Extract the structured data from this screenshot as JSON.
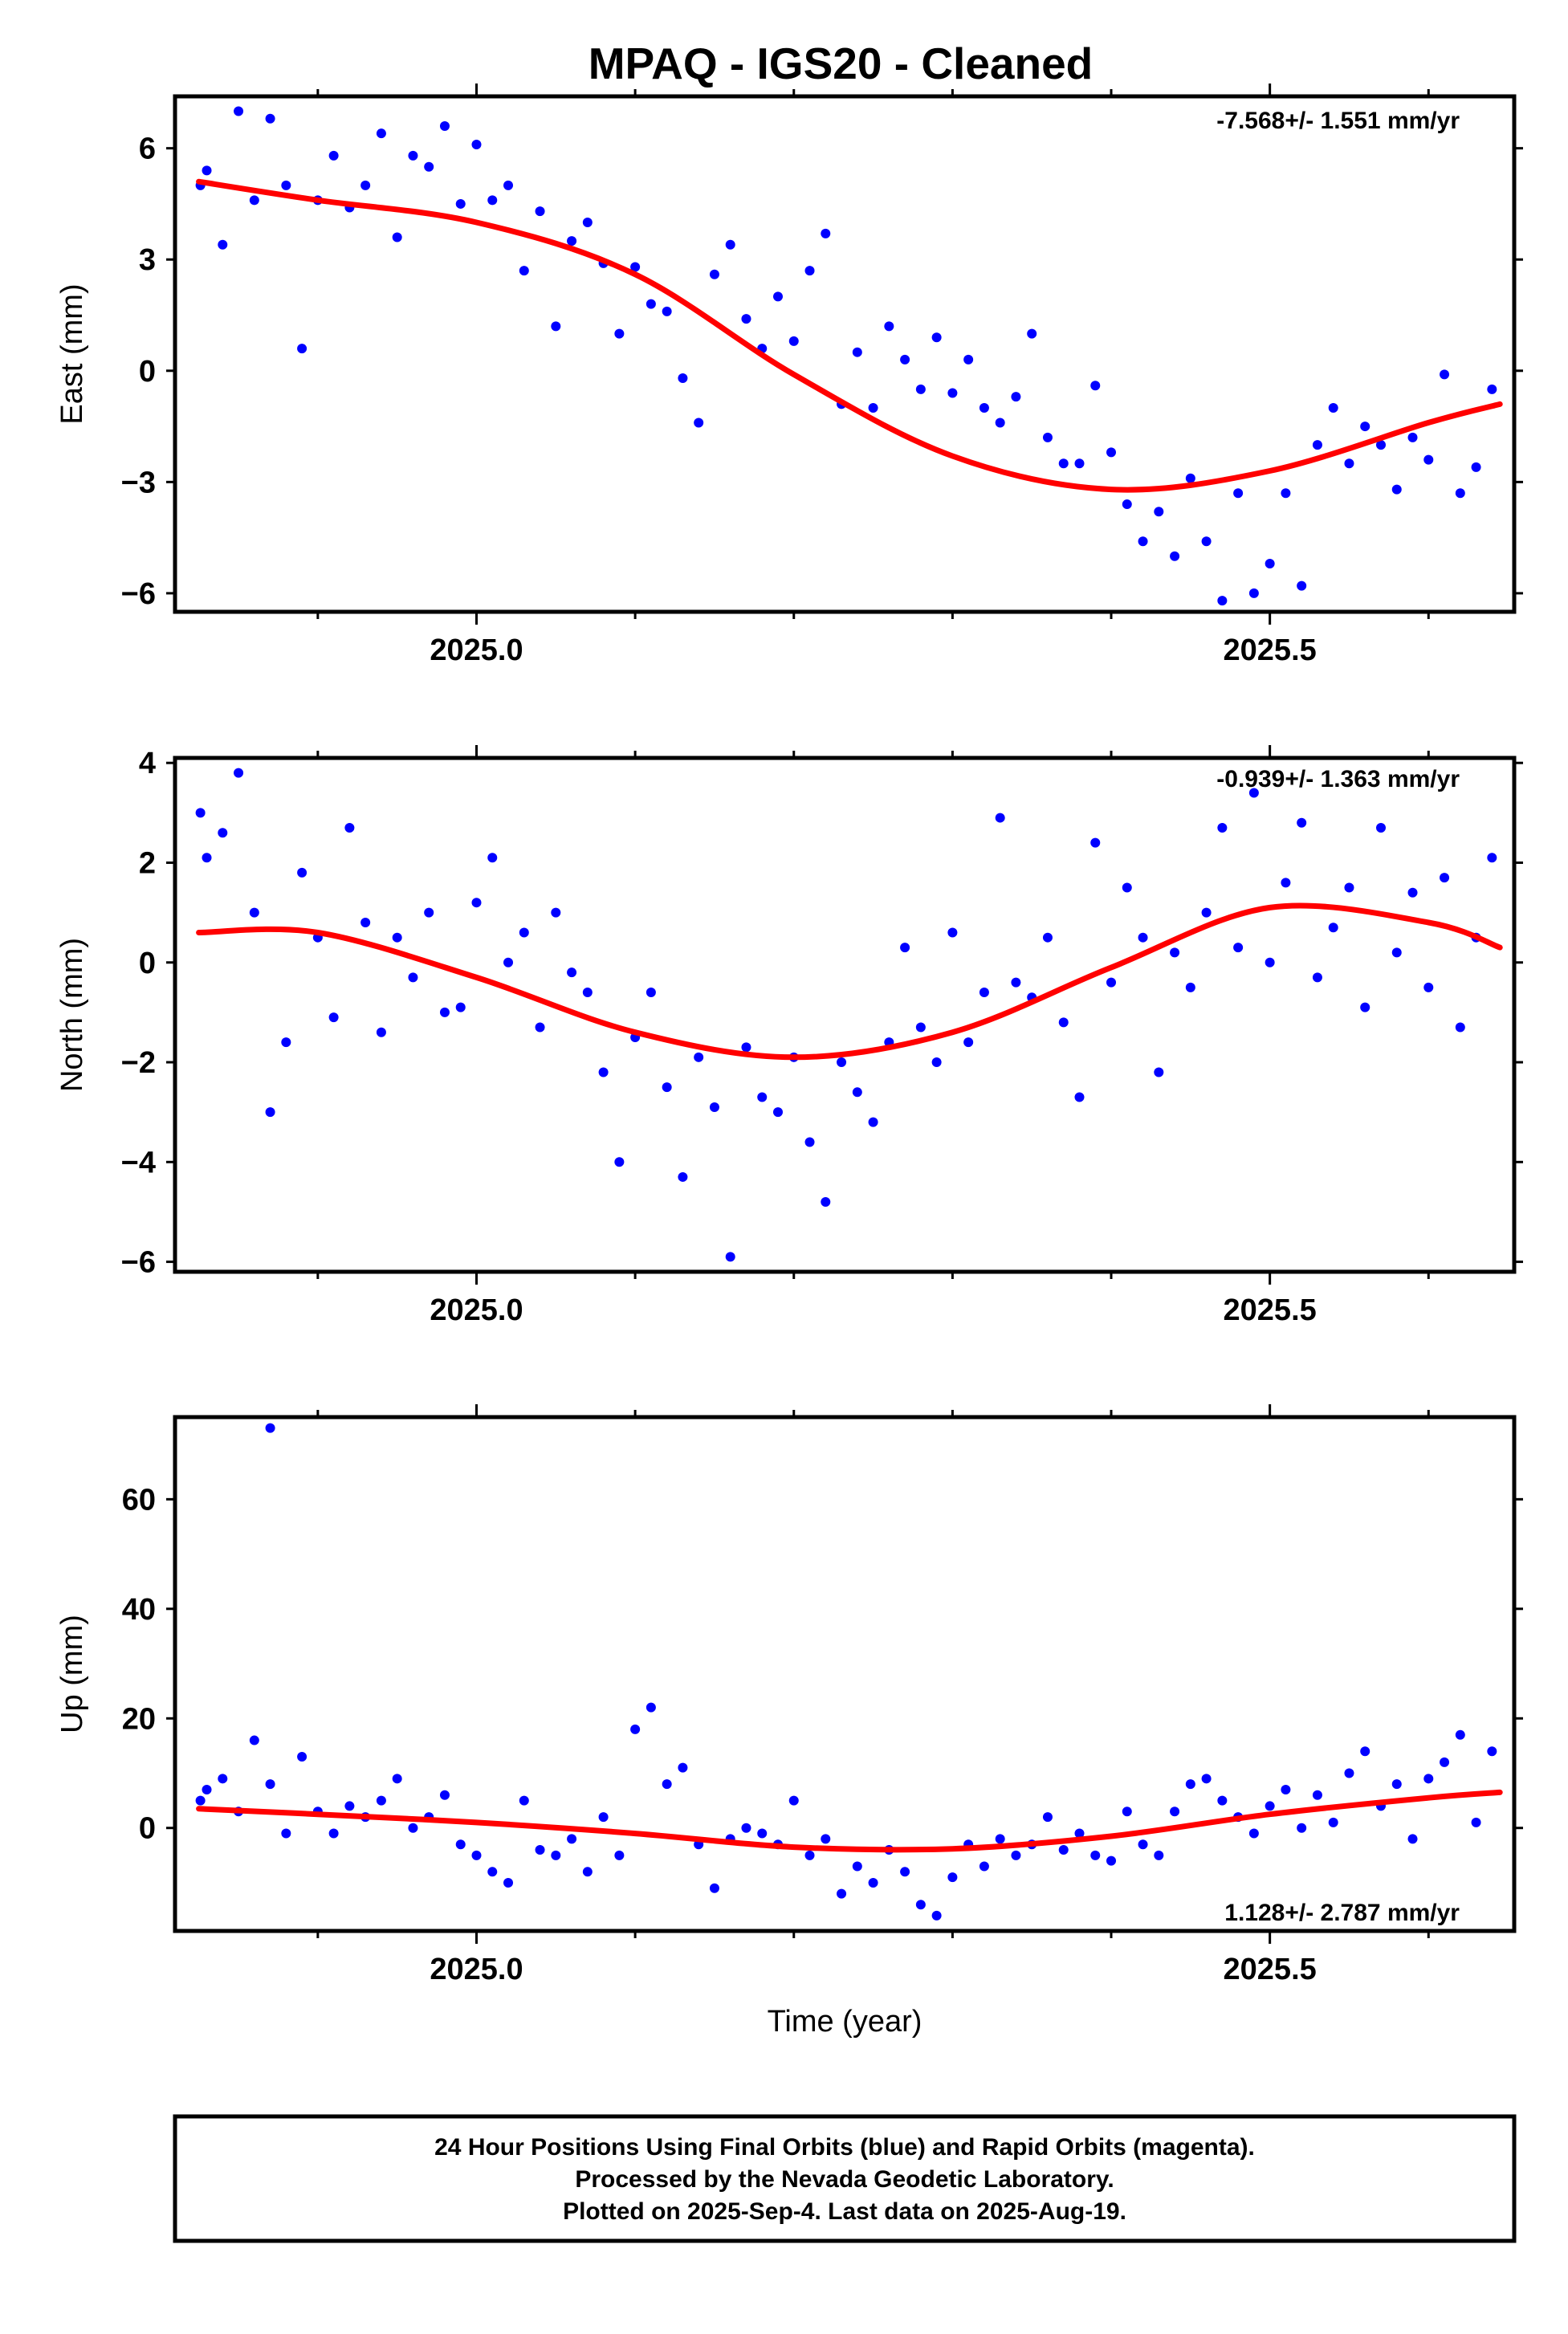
{
  "title": "MPAQ  - IGS20 - Cleaned",
  "colors": {
    "final": "#0000ff",
    "model": "#ff0000",
    "frame": "#000000"
  },
  "xlabel": "Time (year)",
  "footer": {
    "line1": "24 Hour Positions Using Final Orbits (blue) and Rapid Orbits (magenta).",
    "line2": "Processed by the Nevada Geodetic Laboratory.",
    "line3": "Plotted on 2025-Sep-4. Last data on 2025-Aug-19."
  },
  "chart_data": [
    {
      "type": "scatter",
      "ylabel": "East (mm)",
      "rate": "-7.568+/- 1.551 mm/yr",
      "xlim": [
        2024.81,
        2025.654
      ],
      "ylim": [
        -6.5,
        7.4
      ],
      "yticks": [
        6,
        3,
        0,
        -3,
        -6
      ],
      "ytick_labels": [
        "6",
        "3",
        "0",
        "−3",
        "−6"
      ],
      "xticks_major": [
        2025.0,
        2025.5
      ],
      "xtick_labels": [
        "2025.0",
        "2025.5"
      ],
      "xticks_minor": [
        2024.9,
        2025.1,
        2025.2,
        2025.3,
        2025.4,
        2025.6
      ],
      "series": [
        {
          "kind": "points",
          "x": [
            2024.826,
            2024.83,
            2024.84,
            2024.85,
            2024.86,
            2024.87,
            2024.88,
            2024.89,
            2024.9,
            2024.91,
            2024.92,
            2024.93,
            2024.94,
            2024.95,
            2024.96,
            2024.97,
            2024.98,
            2024.99,
            2025.0,
            2025.01,
            2025.02,
            2025.03,
            2025.04,
            2025.05,
            2025.06,
            2025.07,
            2025.08,
            2025.09,
            2025.1,
            2025.11,
            2025.12,
            2025.13,
            2025.14,
            2025.15,
            2025.16,
            2025.17,
            2025.18,
            2025.19,
            2025.2,
            2025.21,
            2025.22,
            2025.23,
            2025.24,
            2025.25,
            2025.26,
            2025.27,
            2025.28,
            2025.29,
            2025.3,
            2025.31,
            2025.32,
            2025.33,
            2025.34,
            2025.35,
            2025.36,
            2025.37,
            2025.38,
            2025.39,
            2025.4,
            2025.41,
            2025.42,
            2025.43,
            2025.44,
            2025.45,
            2025.46,
            2025.47,
            2025.48,
            2025.49,
            2025.5,
            2025.51,
            2025.52,
            2025.53,
            2025.54,
            2025.55,
            2025.56,
            2025.57,
            2025.58,
            2025.59,
            2025.6,
            2025.61,
            2025.62,
            2025.63,
            2025.64
          ],
          "y": [
            5.0,
            5.4,
            3.4,
            7.0,
            4.6,
            6.8,
            5.0,
            0.6,
            4.6,
            5.8,
            4.4,
            5.0,
            6.4,
            3.6,
            5.8,
            5.5,
            6.6,
            4.5,
            6.1,
            4.6,
            5.0,
            2.7,
            4.3,
            1.2,
            3.5,
            4.0,
            2.9,
            1.0,
            2.8,
            1.8,
            1.6,
            -0.2,
            -1.4,
            2.6,
            3.4,
            1.4,
            0.6,
            2.0,
            0.8,
            2.7,
            3.7,
            -0.9,
            0.5,
            -1.0,
            1.2,
            0.3,
            -0.5,
            0.9,
            -0.6,
            0.3,
            -1.0,
            -1.4,
            -0.7,
            1.0,
            -1.8,
            -2.5,
            -2.5,
            -0.4,
            -2.2,
            -3.6,
            -4.6,
            -3.8,
            -5.0,
            -2.9,
            -4.6,
            -6.2,
            -3.3,
            -6.0,
            -5.2,
            -3.3,
            -5.8,
            -2.0,
            -1.0,
            -2.5,
            -1.5,
            -2.0,
            -3.2,
            -1.8,
            -2.4,
            -0.1,
            -3.3,
            -2.6,
            -0.5
          ]
        },
        {
          "kind": "model",
          "x": [
            2024.825,
            2024.9,
            2025.0,
            2025.1,
            2025.2,
            2025.3,
            2025.4,
            2025.5,
            2025.6,
            2025.645
          ],
          "y": [
            5.1,
            4.6,
            4.0,
            2.6,
            -0.1,
            -2.3,
            -3.2,
            -2.7,
            -1.4,
            -0.9
          ]
        }
      ]
    },
    {
      "type": "scatter",
      "ylabel": "North (mm)",
      "rate": "-0.939+/- 1.363 mm/yr",
      "xlim": [
        2024.81,
        2025.654
      ],
      "ylim": [
        -6.2,
        4.1
      ],
      "yticks": [
        4,
        2,
        0,
        -2,
        -4,
        -6
      ],
      "ytick_labels": [
        "4",
        "2",
        "0",
        "−2",
        "−4",
        "−6"
      ],
      "xticks_major": [
        2025.0,
        2025.5
      ],
      "xtick_labels": [
        "2025.0",
        "2025.5"
      ],
      "xticks_minor": [
        2024.9,
        2025.1,
        2025.2,
        2025.3,
        2025.4,
        2025.6
      ],
      "series": [
        {
          "kind": "points",
          "x": [
            2024.826,
            2024.83,
            2024.84,
            2024.85,
            2024.86,
            2024.87,
            2024.88,
            2024.89,
            2024.9,
            2024.91,
            2024.92,
            2024.93,
            2024.94,
            2024.95,
            2024.96,
            2024.97,
            2024.98,
            2024.99,
            2025.0,
            2025.01,
            2025.02,
            2025.03,
            2025.04,
            2025.05,
            2025.06,
            2025.07,
            2025.08,
            2025.09,
            2025.1,
            2025.11,
            2025.12,
            2025.13,
            2025.14,
            2025.15,
            2025.16,
            2025.17,
            2025.18,
            2025.19,
            2025.2,
            2025.21,
            2025.22,
            2025.23,
            2025.24,
            2025.25,
            2025.26,
            2025.27,
            2025.28,
            2025.29,
            2025.3,
            2025.31,
            2025.32,
            2025.33,
            2025.34,
            2025.35,
            2025.36,
            2025.37,
            2025.38,
            2025.39,
            2025.4,
            2025.41,
            2025.42,
            2025.43,
            2025.44,
            2025.45,
            2025.46,
            2025.47,
            2025.48,
            2025.49,
            2025.5,
            2025.51,
            2025.52,
            2025.53,
            2025.54,
            2025.55,
            2025.56,
            2025.57,
            2025.58,
            2025.59,
            2025.6,
            2025.61,
            2025.62,
            2025.63,
            2025.64
          ],
          "y": [
            3.0,
            2.1,
            2.6,
            3.8,
            1.0,
            -3.0,
            -1.6,
            1.8,
            0.5,
            -1.1,
            2.7,
            0.8,
            -1.4,
            0.5,
            -0.3,
            1.0,
            -1.0,
            -0.9,
            1.2,
            2.1,
            0.0,
            0.6,
            -1.3,
            1.0,
            -0.2,
            -0.6,
            -2.2,
            -4.0,
            -1.5,
            -0.6,
            -2.5,
            -4.3,
            -1.9,
            -2.9,
            -5.9,
            -1.7,
            -2.7,
            -3.0,
            -1.9,
            -3.6,
            -4.8,
            -2.0,
            -2.6,
            -3.2,
            -1.6,
            0.3,
            -1.3,
            -2.0,
            0.6,
            -1.6,
            -0.6,
            2.9,
            -0.4,
            -0.7,
            0.5,
            -1.2,
            -2.7,
            2.4,
            -0.4,
            1.5,
            0.5,
            -2.2,
            0.2,
            -0.5,
            1.0,
            2.7,
            0.3,
            3.4,
            0.0,
            1.6,
            2.8,
            -0.3,
            0.7,
            1.5,
            -0.9,
            2.7,
            0.2,
            1.4,
            -0.5,
            1.7,
            -1.3,
            0.5,
            2.1
          ]
        },
        {
          "kind": "model",
          "x": [
            2024.825,
            2024.9,
            2025.0,
            2025.1,
            2025.2,
            2025.3,
            2025.4,
            2025.5,
            2025.6,
            2025.645
          ],
          "y": [
            0.6,
            0.6,
            -0.3,
            -1.4,
            -1.9,
            -1.4,
            -0.1,
            1.1,
            0.8,
            0.3
          ]
        }
      ]
    },
    {
      "type": "scatter",
      "ylabel": "Up (mm)",
      "rate": "1.128+/- 2.787 mm/yr",
      "xlim": [
        2024.81,
        2025.654
      ],
      "ylim": [
        -18.8,
        75
      ],
      "yticks": [
        60,
        40,
        20,
        0
      ],
      "ytick_labels": [
        "60",
        "40",
        "20",
        "0"
      ],
      "xticks_major": [
        2025.0,
        2025.5
      ],
      "xtick_labels": [
        "2025.0",
        "2025.5"
      ],
      "xticks_minor": [
        2024.9,
        2025.1,
        2025.2,
        2025.3,
        2025.4,
        2025.6
      ],
      "series": [
        {
          "kind": "points",
          "x": [
            2024.826,
            2024.83,
            2024.84,
            2024.85,
            2024.86,
            2024.87,
            2024.88,
            2024.89,
            2024.9,
            2024.91,
            2024.92,
            2024.93,
            2024.94,
            2024.95,
            2024.96,
            2024.97,
            2024.98,
            2024.99,
            2025.0,
            2025.01,
            2025.02,
            2025.03,
            2025.04,
            2025.05,
            2025.06,
            2025.07,
            2025.08,
            2025.09,
            2025.1,
            2025.11,
            2025.12,
            2025.13,
            2025.14,
            2025.15,
            2025.16,
            2025.17,
            2025.18,
            2025.19,
            2025.2,
            2025.21,
            2025.22,
            2025.23,
            2025.24,
            2025.25,
            2025.26,
            2025.27,
            2025.28,
            2025.29,
            2025.3,
            2025.31,
            2025.32,
            2025.33,
            2025.34,
            2025.35,
            2025.36,
            2025.37,
            2025.38,
            2025.39,
            2025.4,
            2025.41,
            2025.42,
            2025.43,
            2025.44,
            2025.45,
            2025.46,
            2025.47,
            2025.48,
            2025.49,
            2025.5,
            2025.51,
            2025.52,
            2025.53,
            2025.54,
            2025.55,
            2025.56,
            2025.57,
            2025.58,
            2025.59,
            2025.6,
            2025.61,
            2025.62,
            2025.63,
            2025.64,
            2024.87
          ],
          "y": [
            5.0,
            7.0,
            9.0,
            3.0,
            16.0,
            8.0,
            -1.0,
            13.0,
            3.0,
            -1.0,
            4.0,
            2.0,
            5.0,
            9.0,
            0.0,
            2.0,
            6.0,
            -3.0,
            -5.0,
            -8.0,
            -10.0,
            5.0,
            -4.0,
            -5.0,
            -2.0,
            -8.0,
            2.0,
            -5.0,
            18.0,
            22.0,
            8.0,
            11.0,
            -3.0,
            -11.0,
            -2.0,
            0.0,
            -1.0,
            -3.0,
            5.0,
            -5.0,
            -2.0,
            -12.0,
            -7.0,
            -10.0,
            -4.0,
            -8.0,
            -14.0,
            -16.0,
            -9.0,
            -3.0,
            -7.0,
            -2.0,
            -5.0,
            -3.0,
            2.0,
            -4.0,
            -1.0,
            -5.0,
            -6.0,
            3.0,
            -3.0,
            -5.0,
            3.0,
            8.0,
            9.0,
            5.0,
            2.0,
            -1.0,
            4.0,
            7.0,
            0.0,
            6.0,
            1.0,
            10.0,
            14.0,
            4.0,
            8.0,
            -2.0,
            9.0,
            12.0,
            17.0,
            1.0,
            14.0,
            73.0
          ]
        },
        {
          "kind": "model",
          "x": [
            2024.825,
            2024.9,
            2025.0,
            2025.1,
            2025.2,
            2025.3,
            2025.4,
            2025.5,
            2025.6,
            2025.645
          ],
          "y": [
            3.5,
            2.5,
            1.0,
            -1.0,
            -3.5,
            -3.8,
            -1.5,
            2.5,
            5.5,
            6.5
          ]
        }
      ]
    }
  ]
}
